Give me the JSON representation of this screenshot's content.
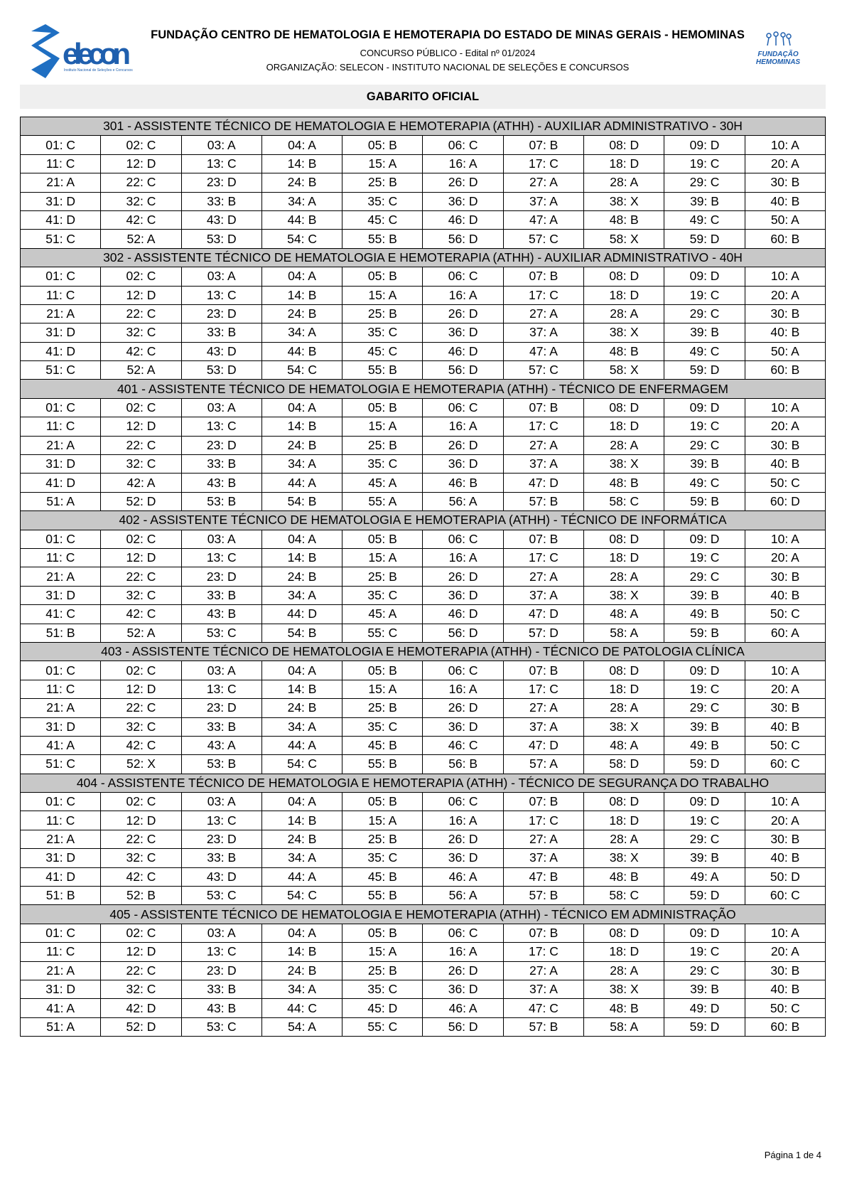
{
  "header": {
    "title": "FUNDAÇÃO CENTRO DE HEMATOLOGIA E HEMOTERAPIA DO ESTADO DE MINAS GERAIS - HEMOMINAS",
    "subtitle": "CONCURSO PÚBLICO - Edital nº 01/2024",
    "organization": "ORGANIZAÇÃO: SELECON - INSTITUTO NACIONAL DE SELEÇÕES E CONCURSOS",
    "logo_left_text": "Selecon",
    "logo_left_tagline": "Instituto Nacional de Seleções e Concursos",
    "logo_right_text": "FUNDAÇÃO HEMOMINAS",
    "brand_color": "#1f5fae"
  },
  "gabarito_title": "GABARITO OFICIAL",
  "sections": [
    {
      "title": "301 - ASSISTENTE TÉCNICO DE HEMATOLOGIA E HEMOTERAPIA (ATHH) - AUXILIAR ADMINISTRATIVO - 30H",
      "answers": [
        "C",
        "C",
        "A",
        "A",
        "B",
        "C",
        "B",
        "D",
        "D",
        "A",
        "C",
        "D",
        "C",
        "B",
        "A",
        "A",
        "C",
        "D",
        "C",
        "A",
        "A",
        "C",
        "D",
        "B",
        "B",
        "D",
        "A",
        "A",
        "C",
        "B",
        "D",
        "C",
        "B",
        "A",
        "C",
        "D",
        "A",
        "X",
        "B",
        "B",
        "D",
        "C",
        "D",
        "B",
        "C",
        "D",
        "A",
        "B",
        "C",
        "A",
        "C",
        "A",
        "D",
        "C",
        "B",
        "D",
        "C",
        "X",
        "D",
        "B"
      ]
    },
    {
      "title": "302 - ASSISTENTE TÉCNICO DE HEMATOLOGIA E HEMOTERAPIA (ATHH) - AUXILIAR ADMINISTRATIVO - 40H",
      "answers": [
        "C",
        "C",
        "A",
        "A",
        "B",
        "C",
        "B",
        "D",
        "D",
        "A",
        "C",
        "D",
        "C",
        "B",
        "A",
        "A",
        "C",
        "D",
        "C",
        "A",
        "A",
        "C",
        "D",
        "B",
        "B",
        "D",
        "A",
        "A",
        "C",
        "B",
        "D",
        "C",
        "B",
        "A",
        "C",
        "D",
        "A",
        "X",
        "B",
        "B",
        "D",
        "C",
        "D",
        "B",
        "C",
        "D",
        "A",
        "B",
        "C",
        "A",
        "C",
        "A",
        "D",
        "C",
        "B",
        "D",
        "C",
        "X",
        "D",
        "B"
      ]
    },
    {
      "title": "401 - ASSISTENTE TÉCNICO DE HEMATOLOGIA E HEMOTERAPIA (ATHH) - TÉCNICO DE ENFERMAGEM",
      "answers": [
        "C",
        "C",
        "A",
        "A",
        "B",
        "C",
        "B",
        "D",
        "D",
        "A",
        "C",
        "D",
        "C",
        "B",
        "A",
        "A",
        "C",
        "D",
        "C",
        "A",
        "A",
        "C",
        "D",
        "B",
        "B",
        "D",
        "A",
        "A",
        "C",
        "B",
        "D",
        "C",
        "B",
        "A",
        "C",
        "D",
        "A",
        "X",
        "B",
        "B",
        "D",
        "A",
        "B",
        "A",
        "A",
        "B",
        "D",
        "B",
        "C",
        "C",
        "A",
        "D",
        "B",
        "B",
        "A",
        "A",
        "B",
        "C",
        "B",
        "D"
      ]
    },
    {
      "title": "402 - ASSISTENTE TÉCNICO DE HEMATOLOGIA E HEMOTERAPIA (ATHH) - TÉCNICO DE INFORMÁTICA",
      "answers": [
        "C",
        "C",
        "A",
        "A",
        "B",
        "C",
        "B",
        "D",
        "D",
        "A",
        "C",
        "D",
        "C",
        "B",
        "A",
        "A",
        "C",
        "D",
        "C",
        "A",
        "A",
        "C",
        "D",
        "B",
        "B",
        "D",
        "A",
        "A",
        "C",
        "B",
        "D",
        "C",
        "B",
        "A",
        "C",
        "D",
        "A",
        "X",
        "B",
        "B",
        "C",
        "C",
        "B",
        "D",
        "A",
        "D",
        "D",
        "A",
        "B",
        "C",
        "B",
        "A",
        "C",
        "B",
        "C",
        "D",
        "D",
        "A",
        "B",
        "A"
      ]
    },
    {
      "title": "403 - ASSISTENTE TÉCNICO DE HEMATOLOGIA E HEMOTERAPIA (ATHH) - TÉCNICO DE PATOLOGIA CLÍNICA",
      "answers": [
        "C",
        "C",
        "A",
        "A",
        "B",
        "C",
        "B",
        "D",
        "D",
        "A",
        "C",
        "D",
        "C",
        "B",
        "A",
        "A",
        "C",
        "D",
        "C",
        "A",
        "A",
        "C",
        "D",
        "B",
        "B",
        "D",
        "A",
        "A",
        "C",
        "B",
        "D",
        "C",
        "B",
        "A",
        "C",
        "D",
        "A",
        "X",
        "B",
        "B",
        "A",
        "C",
        "A",
        "A",
        "B",
        "C",
        "D",
        "A",
        "B",
        "C",
        "C",
        "X",
        "B",
        "C",
        "B",
        "B",
        "A",
        "D",
        "D",
        "C"
      ]
    },
    {
      "title": "404 - ASSISTENTE TÉCNICO DE HEMATOLOGIA E HEMOTERAPIA (ATHH) - TÉCNICO DE SEGURANÇA DO TRABALHO",
      "answers": [
        "C",
        "C",
        "A",
        "A",
        "B",
        "C",
        "B",
        "D",
        "D",
        "A",
        "C",
        "D",
        "C",
        "B",
        "A",
        "A",
        "C",
        "D",
        "C",
        "A",
        "A",
        "C",
        "D",
        "B",
        "B",
        "D",
        "A",
        "A",
        "C",
        "B",
        "D",
        "C",
        "B",
        "A",
        "C",
        "D",
        "A",
        "X",
        "B",
        "B",
        "D",
        "C",
        "D",
        "A",
        "B",
        "A",
        "B",
        "B",
        "A",
        "D",
        "B",
        "B",
        "C",
        "C",
        "B",
        "A",
        "B",
        "C",
        "D",
        "C"
      ]
    },
    {
      "title": "405 - ASSISTENTE TÉCNICO DE HEMATOLOGIA E HEMOTERAPIA (ATHH) - TÉCNICO EM ADMINISTRAÇÃO",
      "answers": [
        "C",
        "C",
        "A",
        "A",
        "B",
        "C",
        "B",
        "D",
        "D",
        "A",
        "C",
        "D",
        "C",
        "B",
        "A",
        "A",
        "C",
        "D",
        "C",
        "A",
        "A",
        "C",
        "D",
        "B",
        "B",
        "D",
        "A",
        "A",
        "C",
        "B",
        "D",
        "C",
        "B",
        "A",
        "C",
        "D",
        "A",
        "X",
        "B",
        "B",
        "A",
        "D",
        "B",
        "C",
        "D",
        "A",
        "C",
        "B",
        "D",
        "C",
        "A",
        "D",
        "C",
        "A",
        "C",
        "D",
        "B",
        "A",
        "D",
        "B"
      ]
    }
  ],
  "footer": {
    "page": "Página 1 de 4"
  }
}
